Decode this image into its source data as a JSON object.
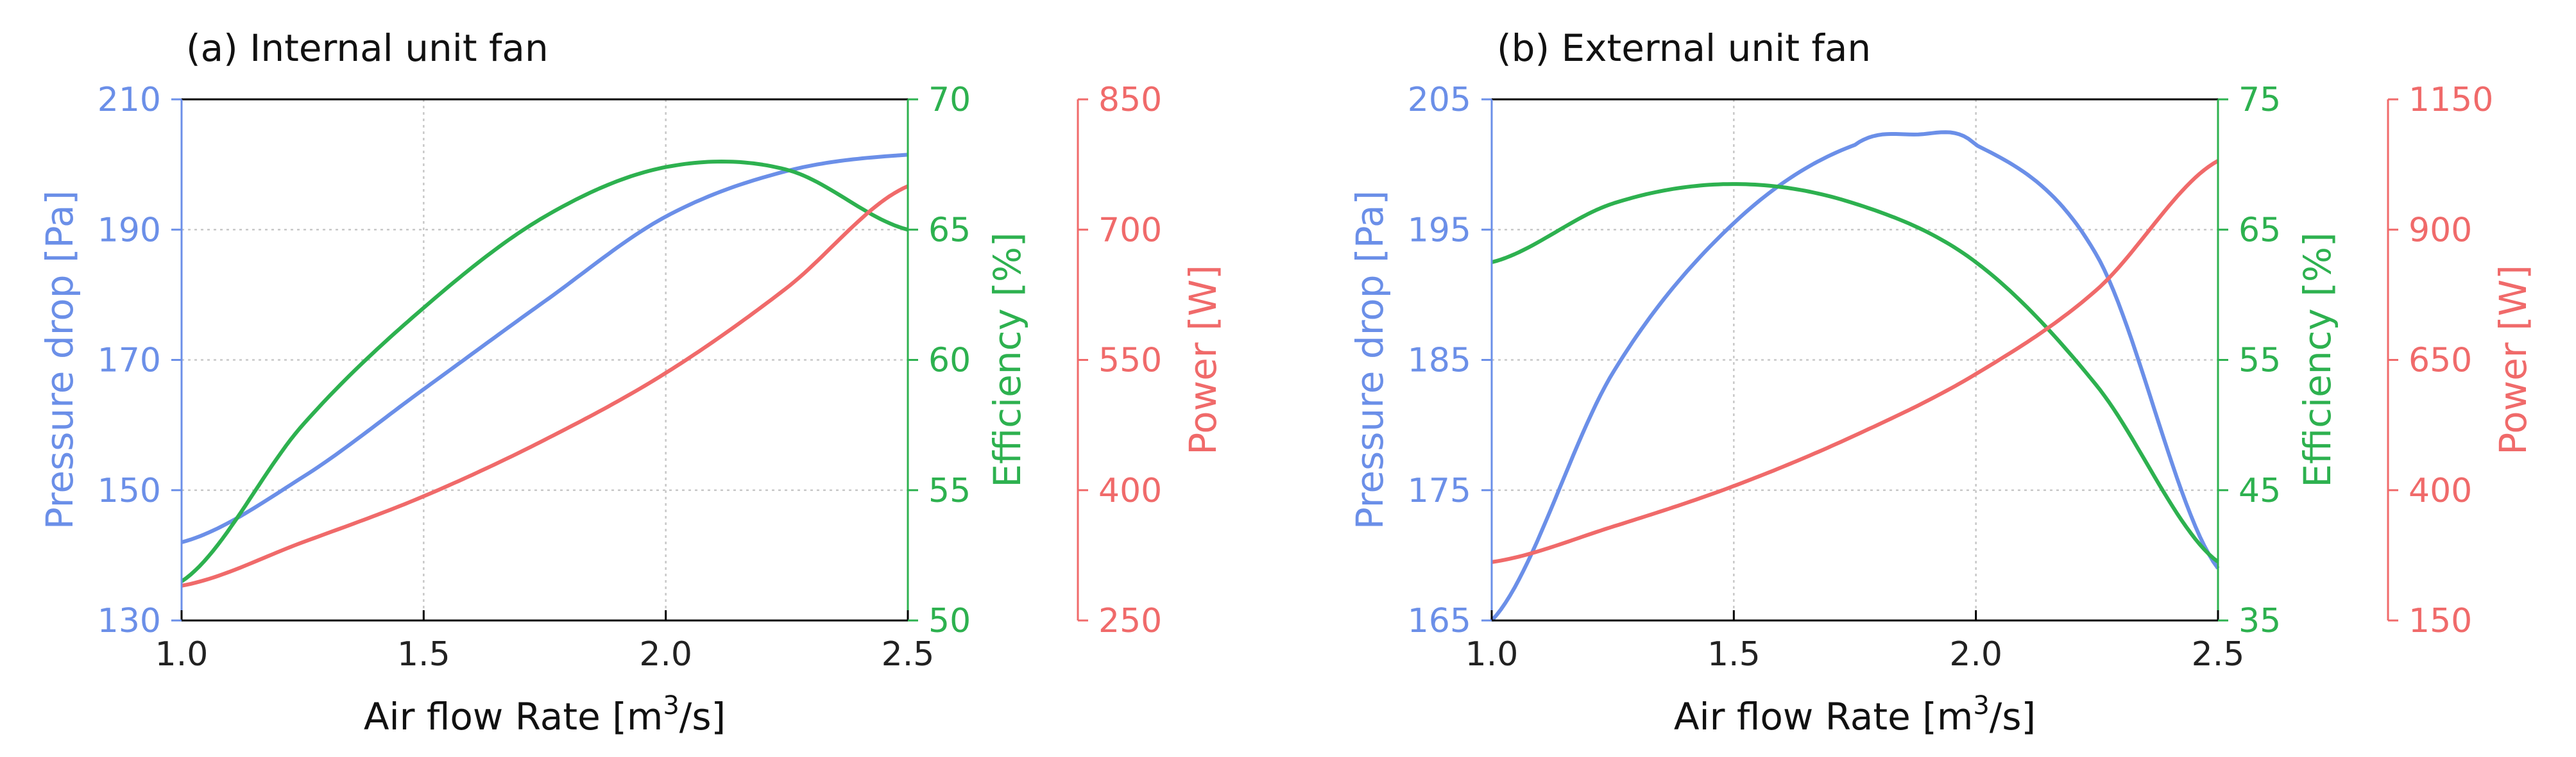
{
  "colors": {
    "pressure": "#6b8fe8",
    "efficiency": "#2db14f",
    "power": "#f06a6a",
    "axis": "#000000",
    "grid": "#c8c8c8"
  },
  "chart_data": [
    {
      "type": "line",
      "title": "(a) Internal unit fan",
      "xlabel": "Air flow Rate [m",
      "xlabel_sup": "3",
      "xlabel_tail": "/s]",
      "xlim": [
        1.0,
        2.5
      ],
      "xticks": [
        "1.0",
        "1.5",
        "2.0",
        "2.5"
      ],
      "grid": true,
      "axes": {
        "pressure": {
          "label": "Pressure drop [Pa]",
          "ylim": [
            130,
            210
          ],
          "ticks": [
            "130",
            "150",
            "170",
            "190",
            "210"
          ]
        },
        "efficiency": {
          "label": "Efficiency [%]",
          "ylim": [
            50,
            70
          ],
          "ticks": [
            "50",
            "55",
            "60",
            "65",
            "70"
          ]
        },
        "power": {
          "label": "Power [W]",
          "ylim": [
            250,
            850
          ],
          "ticks": [
            "250",
            "400",
            "550",
            "700",
            "850"
          ]
        }
      },
      "series": [
        {
          "axis": "pressure",
          "x": [
            1.0,
            1.25,
            1.5,
            1.75,
            2.0,
            2.25,
            2.5
          ],
          "values": [
            142,
            152,
            165.5,
            179,
            192,
            199,
            201.5
          ]
        },
        {
          "axis": "efficiency",
          "x": [
            1.0,
            1.25,
            1.5,
            1.75,
            2.0,
            2.25,
            2.5
          ],
          "values": [
            51.5,
            57.5,
            62,
            65.5,
            67.4,
            67.3,
            65
          ]
        },
        {
          "axis": "power",
          "x": [
            1.0,
            1.25,
            1.5,
            1.75,
            2.0,
            2.25,
            2.5
          ],
          "values": [
            290,
            340,
            393,
            458,
            535,
            633,
            750
          ]
        }
      ]
    },
    {
      "type": "line",
      "title": "(b) External unit fan",
      "xlabel": "Air flow Rate [m",
      "xlabel_sup": "3",
      "xlabel_tail": "/s]",
      "xlim": [
        1.0,
        2.5
      ],
      "xticks": [
        "1.0",
        "1.5",
        "2.0",
        "2.5"
      ],
      "grid": true,
      "axes": {
        "pressure": {
          "label": "Pressure drop [Pa]",
          "ylim": [
            165,
            205
          ],
          "ticks": [
            "165",
            "175",
            "185",
            "195",
            "205"
          ]
        },
        "efficiency": {
          "label": "Efficiency [%]",
          "ylim": [
            35,
            75
          ],
          "ticks": [
            "35",
            "45",
            "55",
            "65",
            "75"
          ]
        },
        "power": {
          "label": "Power [W]",
          "ylim": [
            150,
            1150
          ],
          "ticks": [
            "150",
            "400",
            "650",
            "900",
            "1150"
          ]
        }
      },
      "series": [
        {
          "axis": "pressure",
          "x": [
            1.0,
            1.25,
            1.5,
            1.75,
            1.875,
            2.0,
            2.25,
            2.5
          ],
          "values": [
            165,
            184,
            195.5,
            201.5,
            202.3,
            201.5,
            193,
            169
          ]
        },
        {
          "axis": "efficiency",
          "x": [
            1.0,
            1.25,
            1.5,
            1.75,
            2.0,
            2.25,
            2.5
          ],
          "values": [
            62.5,
            67,
            68.5,
            67,
            62.5,
            53,
            39.5
          ]
        },
        {
          "axis": "power",
          "x": [
            1.0,
            1.25,
            1.5,
            1.75,
            2.0,
            2.25,
            2.5
          ],
          "values": [
            262,
            330,
            408,
            505,
            623,
            785,
            1032
          ]
        }
      ]
    }
  ]
}
